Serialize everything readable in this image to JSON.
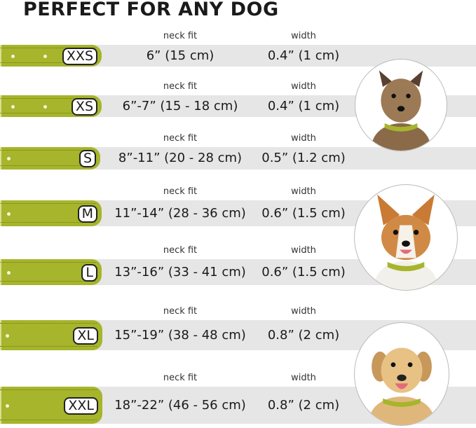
{
  "title": "PERFECT FOR ANY DOG",
  "colors": {
    "collar": "#a6b52b",
    "band": "#e6e6e6"
  },
  "neck_label": "neck fit",
  "width_label": "width",
  "sizes": [
    {
      "size": "XXS",
      "neck_fit": "6” (15 cm)",
      "width": "0.4” (1 cm)"
    },
    {
      "size": "XS",
      "neck_fit": "6”-7” (15 - 18 cm)",
      "width": "0.4” (1 cm)"
    },
    {
      "size": "S",
      "neck_fit": "8”-11” (20 - 28 cm)",
      "width": "0.5” (1.2 cm)"
    },
    {
      "size": "M",
      "neck_fit": "11”-14” (28 - 36 cm)",
      "width": "0.6” (1.5 cm)"
    },
    {
      "size": "L",
      "neck_fit": "13”-16” (33 - 41 cm)",
      "width": "0.6” (1.5 cm)"
    },
    {
      "size": "XL",
      "neck_fit": "15”-19” (38 - 48 cm)",
      "width": "0.8” (2 cm)"
    },
    {
      "size": "XXL",
      "neck_fit": "18”-22” (46 - 56 cm)",
      "width": "0.8” (2 cm)"
    }
  ],
  "photos": [
    "small terrier dog wearing green collar",
    "corgi wearing green collar",
    "labrador wearing green collar"
  ]
}
